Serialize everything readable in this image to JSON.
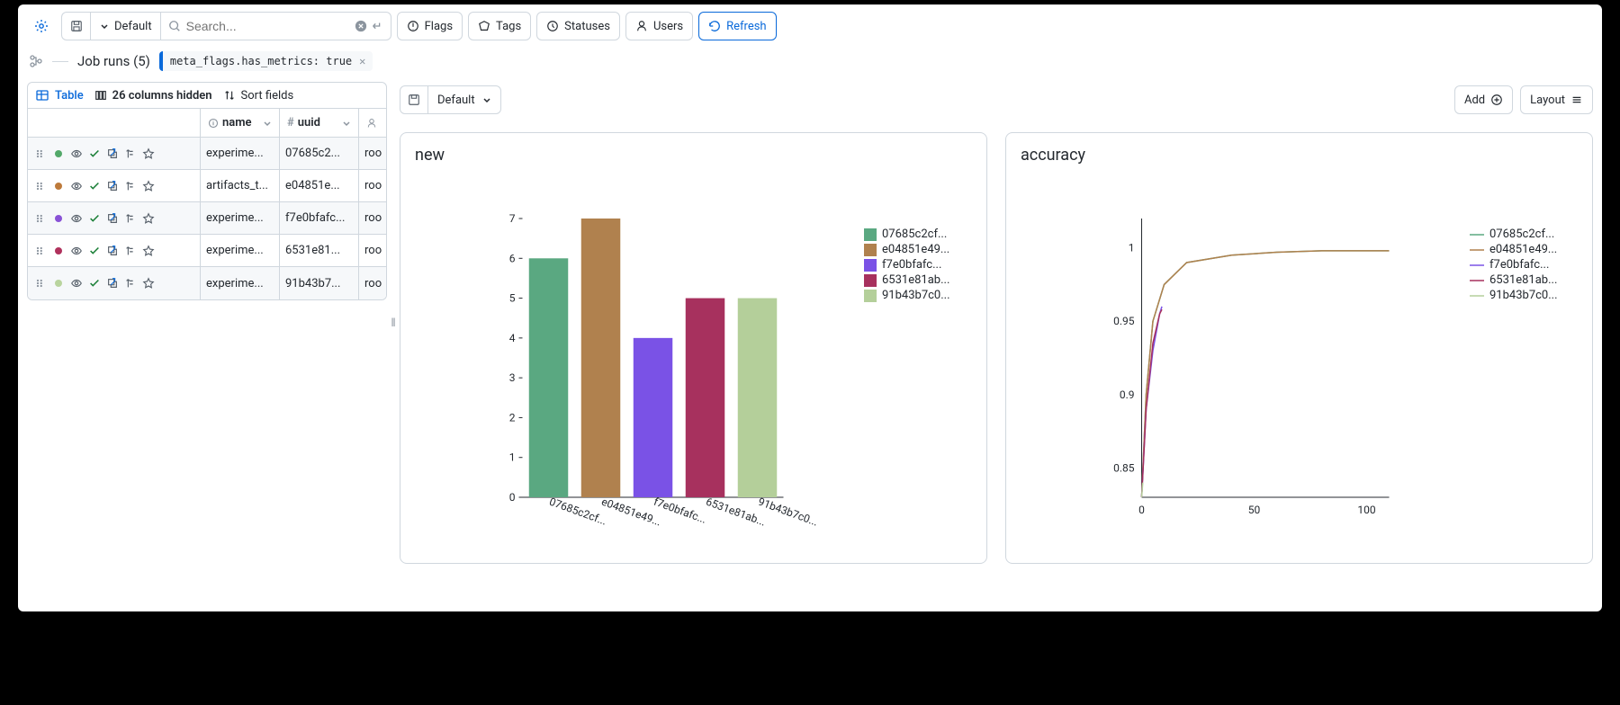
{
  "toolbar": {
    "default_label": "Default",
    "search_placeholder": "Search...",
    "flags_label": "Flags",
    "tags_label": "Tags",
    "statuses_label": "Statuses",
    "users_label": "Users",
    "refresh_label": "Refresh"
  },
  "breadcrumb": {
    "title": "Job runs (5)",
    "filter_key": "meta_flags.has_metrics:",
    "filter_value": " true"
  },
  "tablebar": {
    "table_label": "Table",
    "hidden_label": "26 columns hidden",
    "sort_label": "Sort fields"
  },
  "columns": {
    "name": "name",
    "uuid": "uuid"
  },
  "row_dot_colors": [
    "#52a869",
    "#bd7a3b",
    "#8952d6",
    "#b0315c",
    "#b9d49e"
  ],
  "rows": [
    {
      "name": "experime...",
      "uuid": "07685c2...",
      "user": "roo"
    },
    {
      "name": "artifacts_t...",
      "uuid": "e04851e...",
      "user": "roo"
    },
    {
      "name": "experime...",
      "uuid": "f7e0bfafc...",
      "user": "roo"
    },
    {
      "name": "experime...",
      "uuid": "6531e81...",
      "user": "roo"
    },
    {
      "name": "experime...",
      "uuid": "91b43b7...",
      "user": "roo"
    }
  ],
  "chartbar": {
    "default_label": "Default",
    "add_label": "Add",
    "layout_label": "Layout"
  },
  "legend_labels": [
    "07685c2cf...",
    "e04851e49...",
    "f7e0bfafc...",
    "6531e81ab...",
    "91b43b7c0..."
  ],
  "bar_chart": {
    "title": "new",
    "categories": [
      "07685c2cf...",
      "e04851e49...",
      "f7e0bfafc...",
      "6531e81ab...",
      "91b43b7c0..."
    ],
    "values": [
      6.0,
      7.0,
      4.0,
      5.0,
      5.0
    ],
    "colors": [
      "#5aa881",
      "#b0814e",
      "#7a52e6",
      "#a7315e",
      "#b4cf9a"
    ],
    "ylim": [
      0,
      7
    ],
    "yticks": [
      0,
      1,
      2,
      3,
      4,
      5,
      6,
      7
    ]
  },
  "line_chart": {
    "title": "accuracy",
    "xlim": [
      0,
      110
    ],
    "xticks": [
      0,
      50,
      100
    ],
    "ylim": [
      0.83,
      1.02
    ],
    "yticks": [
      0.85,
      0.9,
      0.95,
      1
    ],
    "colors": [
      "#5aa881",
      "#b0814e",
      "#7a52e6",
      "#a7315e",
      "#b4cf9a"
    ],
    "series": [
      {
        "pts": [
          [
            0,
            0.83
          ],
          [
            2,
            0.9
          ],
          [
            5,
            0.95
          ],
          [
            10,
            0.975
          ],
          [
            20,
            0.99
          ],
          [
            40,
            0.995
          ],
          [
            60,
            0.997
          ],
          [
            80,
            0.998
          ],
          [
            100,
            0.998
          ],
          [
            110,
            0.998
          ]
        ]
      },
      {
        "pts": [
          [
            0,
            0.83
          ],
          [
            2,
            0.9
          ],
          [
            5,
            0.95
          ],
          [
            10,
            0.975
          ],
          [
            20,
            0.99
          ],
          [
            40,
            0.995
          ],
          [
            60,
            0.997
          ],
          [
            80,
            0.998
          ],
          [
            100,
            0.998
          ],
          [
            110,
            0.998
          ]
        ]
      },
      {
        "pts": [
          [
            0,
            0.83
          ],
          [
            2,
            0.89
          ],
          [
            5,
            0.93
          ],
          [
            8,
            0.955
          ],
          [
            9,
            0.96
          ]
        ]
      },
      {
        "pts": [
          [
            0,
            0.83
          ],
          [
            2,
            0.89
          ],
          [
            5,
            0.935
          ],
          [
            8,
            0.955
          ],
          [
            9,
            0.958
          ]
        ]
      },
      {
        "pts": [
          [
            0,
            0.83
          ],
          [
            0.5,
            0.84
          ]
        ]
      }
    ]
  }
}
